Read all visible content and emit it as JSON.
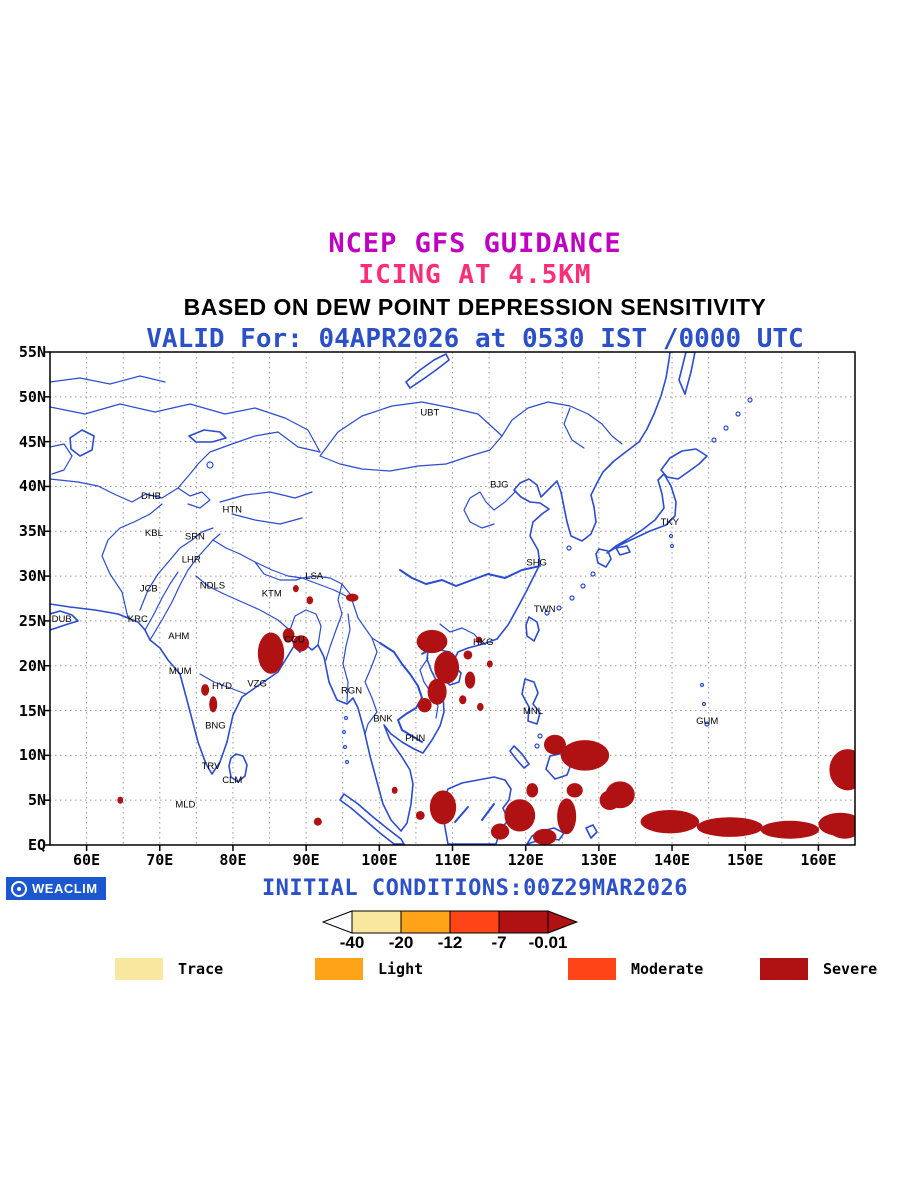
{
  "titles": {
    "line1": "NCEP GFS GUIDANCE",
    "line2": "ICING AT 4.5KM",
    "line3": "BASED ON DEW POINT DEPRESSION SENSITIVITY",
    "line4": "VALID For: 04APR2026 at 0530 IST /0000 UTC"
  },
  "footer": {
    "initial_conditions": "INITIAL CONDITIONS:00Z29MAR2026",
    "logo_text": "WEACLIM"
  },
  "colors": {
    "title1": "#C000C0",
    "title2": "#FF2D78",
    "title3": "#000000",
    "title4": "#2B50C8",
    "footer_text": "#2B50C8",
    "logo_bg": "#1B58CF",
    "map_line": "#2B4BD0",
    "severe": "#B01113"
  },
  "map": {
    "lon_range": [
      55,
      165
    ],
    "lat_range": [
      0,
      55
    ],
    "lat_labels": [
      "EQ",
      "5N",
      "10N",
      "15N",
      "20N",
      "25N",
      "30N",
      "35N",
      "40N",
      "45N",
      "50N",
      "55N"
    ],
    "lon_labels": [
      "60E",
      "70E",
      "80E",
      "90E",
      "100E",
      "110E",
      "120E",
      "130E",
      "140E",
      "150E",
      "160E"
    ],
    "stations": [
      {
        "code": "UBT",
        "lon": 106.9,
        "lat": 47.9
      },
      {
        "code": "BJG",
        "lon": 116.4,
        "lat": 39.9
      },
      {
        "code": "TKY",
        "lon": 139.7,
        "lat": 35.7
      },
      {
        "code": "DHB",
        "lon": 68.8,
        "lat": 38.6
      },
      {
        "code": "HTN",
        "lon": 79.9,
        "lat": 37.1
      },
      {
        "code": "KBL",
        "lon": 69.2,
        "lat": 34.5
      },
      {
        "code": "SRN",
        "lon": 74.8,
        "lat": 34.1
      },
      {
        "code": "LHR",
        "lon": 74.3,
        "lat": 31.5
      },
      {
        "code": "SHG",
        "lon": 121.5,
        "lat": 31.2
      },
      {
        "code": "LSA",
        "lon": 91.1,
        "lat": 29.7
      },
      {
        "code": "JCB",
        "lon": 68.5,
        "lat": 28.3
      },
      {
        "code": "NDLS",
        "lon": 77.2,
        "lat": 28.6
      },
      {
        "code": "KTM",
        "lon": 85.3,
        "lat": 27.7
      },
      {
        "code": "TWN",
        "lon": 122.6,
        "lat": 26.0
      },
      {
        "code": "DUB",
        "lon": 56.6,
        "lat": 24.9
      },
      {
        "code": "KRC",
        "lon": 67.0,
        "lat": 24.9
      },
      {
        "code": "AHM",
        "lon": 72.6,
        "lat": 23.0
      },
      {
        "code": "CCU",
        "lon": 88.4,
        "lat": 22.6
      },
      {
        "code": "HKG",
        "lon": 114.2,
        "lat": 22.3
      },
      {
        "code": "MUM",
        "lon": 72.8,
        "lat": 19.1
      },
      {
        "code": "HYD",
        "lon": 78.5,
        "lat": 17.4
      },
      {
        "code": "VZG",
        "lon": 83.3,
        "lat": 17.7
      },
      {
        "code": "RGN",
        "lon": 96.2,
        "lat": 16.9
      },
      {
        "code": "MNL",
        "lon": 121.0,
        "lat": 14.6
      },
      {
        "code": "BNK",
        "lon": 100.5,
        "lat": 13.8
      },
      {
        "code": "GUM",
        "lon": 144.8,
        "lat": 13.5
      },
      {
        "code": "BNG",
        "lon": 77.6,
        "lat": 13.0
      },
      {
        "code": "PHN",
        "lon": 104.9,
        "lat": 11.6
      },
      {
        "code": "TRV",
        "lon": 77.0,
        "lat": 8.5
      },
      {
        "code": "CLM",
        "lon": 79.9,
        "lat": 6.9
      },
      {
        "code": "MLD",
        "lon": 73.5,
        "lat": 4.2
      }
    ],
    "severe_regions": [
      {
        "lon": 85.2,
        "lat": 21.4,
        "w": 3.6,
        "h": 4.6
      },
      {
        "lon": 87.6,
        "lat": 23.4,
        "w": 1.6,
        "h": 1.6
      },
      {
        "lon": 89.3,
        "lat": 22.5,
        "w": 2.2,
        "h": 1.8
      },
      {
        "lon": 90.5,
        "lat": 27.3,
        "w": 0.9,
        "h": 0.9
      },
      {
        "lon": 96.3,
        "lat": 27.6,
        "w": 1.7,
        "h": 0.9
      },
      {
        "lon": 88.6,
        "lat": 28.6,
        "w": 0.8,
        "h": 0.8
      },
      {
        "lon": 107.2,
        "lat": 22.7,
        "w": 4.2,
        "h": 2.6
      },
      {
        "lon": 109.2,
        "lat": 19.8,
        "w": 3.4,
        "h": 3.6
      },
      {
        "lon": 107.9,
        "lat": 17.1,
        "w": 2.6,
        "h": 2.9
      },
      {
        "lon": 106.2,
        "lat": 15.6,
        "w": 1.9,
        "h": 1.6
      },
      {
        "lon": 112.1,
        "lat": 21.2,
        "w": 1.2,
        "h": 1.0
      },
      {
        "lon": 112.4,
        "lat": 18.4,
        "w": 1.4,
        "h": 1.9
      },
      {
        "lon": 111.4,
        "lat": 16.2,
        "w": 1.0,
        "h": 1.0
      },
      {
        "lon": 113.6,
        "lat": 22.9,
        "w": 0.9,
        "h": 0.7
      },
      {
        "lon": 115.1,
        "lat": 20.2,
        "w": 0.8,
        "h": 0.8
      },
      {
        "lon": 113.8,
        "lat": 15.4,
        "w": 0.9,
        "h": 0.9
      },
      {
        "lon": 76.2,
        "lat": 17.3,
        "w": 1.1,
        "h": 1.3
      },
      {
        "lon": 77.3,
        "lat": 15.7,
        "w": 1.1,
        "h": 1.8
      },
      {
        "lon": 64.6,
        "lat": 5.0,
        "w": 0.8,
        "h": 0.8
      },
      {
        "lon": 91.6,
        "lat": 2.6,
        "w": 1.1,
        "h": 0.9
      },
      {
        "lon": 102.1,
        "lat": 6.1,
        "w": 0.8,
        "h": 0.8
      },
      {
        "lon": 105.6,
        "lat": 3.3,
        "w": 1.2,
        "h": 1.0
      },
      {
        "lon": 108.7,
        "lat": 4.2,
        "w": 3.6,
        "h": 3.8
      },
      {
        "lon": 116.5,
        "lat": 1.5,
        "w": 2.5,
        "h": 1.8
      },
      {
        "lon": 119.2,
        "lat": 3.3,
        "w": 4.2,
        "h": 3.6
      },
      {
        "lon": 120.9,
        "lat": 6.1,
        "w": 1.6,
        "h": 1.6
      },
      {
        "lon": 122.6,
        "lat": 0.9,
        "w": 3.2,
        "h": 1.8
      },
      {
        "lon": 124.0,
        "lat": 11.2,
        "w": 3.0,
        "h": 2.2
      },
      {
        "lon": 128.1,
        "lat": 10.0,
        "w": 6.6,
        "h": 3.4
      },
      {
        "lon": 126.7,
        "lat": 6.1,
        "w": 2.2,
        "h": 1.6
      },
      {
        "lon": 125.6,
        "lat": 3.2,
        "w": 2.6,
        "h": 4.0
      },
      {
        "lon": 131.5,
        "lat": 5.0,
        "w": 2.8,
        "h": 2.2
      },
      {
        "lon": 132.9,
        "lat": 5.6,
        "w": 4.0,
        "h": 3.0
      },
      {
        "lon": 139.7,
        "lat": 2.6,
        "w": 8.0,
        "h": 2.6
      },
      {
        "lon": 147.9,
        "lat": 2.0,
        "w": 9.0,
        "h": 2.2
      },
      {
        "lon": 156.1,
        "lat": 1.7,
        "w": 8.0,
        "h": 2.0
      },
      {
        "lon": 163.0,
        "lat": 2.3,
        "w": 6.0,
        "h": 2.6
      },
      {
        "lon": 164.0,
        "lat": 8.4,
        "w": 5.0,
        "h": 4.6
      },
      {
        "lon": 163.6,
        "lat": 1.7,
        "w": 4.0,
        "h": 2.0
      }
    ]
  },
  "colorbar": {
    "tick_labels": [
      "-40",
      "-20",
      "-12",
      "-7",
      "-0.01"
    ],
    "left_arrow_color": "#FFFFFF",
    "segment_colors": [
      "#F9E79F",
      "#FFA419",
      "#FF4517",
      "#B01113"
    ],
    "right_arrow_color": "#B01113"
  },
  "legend": {
    "items": [
      {
        "label": "Trace",
        "color": "#F9E79F"
      },
      {
        "label": "Light",
        "color": "#FFA419"
      },
      {
        "label": "Moderate",
        "color": "#FF4517"
      },
      {
        "label": "Severe",
        "color": "#B01113"
      }
    ]
  }
}
